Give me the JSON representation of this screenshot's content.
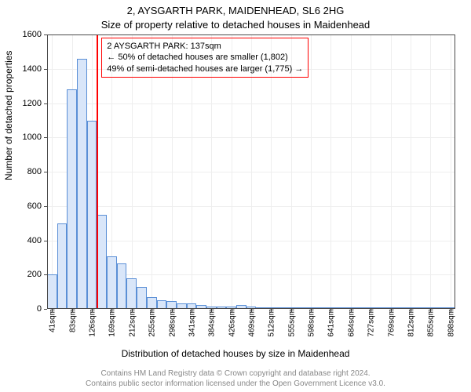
{
  "title_main": "2, AYSGARTH PARK, MAIDENHEAD, SL6 2HG",
  "title_sub": "Size of property relative to detached houses in Maidenhead",
  "ylabel": "Number of detached properties",
  "xlabel": "Distribution of detached houses by size in Maidenhead",
  "attribution_line1": "Contains HM Land Registry data © Crown copyright and database right 2024.",
  "attribution_line2": "Contains public sector information licensed under the Open Government Licence v3.0.",
  "chart": {
    "type": "histogram",
    "ylim": [
      0,
      1600
    ],
    "ytick_step": 200,
    "ylabel_fontsize": 12,
    "xlabel_fontsize": 12,
    "title_fontsize": 13,
    "tick_fontsize": 11,
    "background_color": "#ffffff",
    "grid_color": "#eeeeee",
    "border_color": "#4a4a4a",
    "bar_fill": "#d9e6f9",
    "bar_border": "#5a8fd6",
    "bar_border_width": 1,
    "marker_color": "#ff0000",
    "marker_value_sqm": 137,
    "annotation_border": "#ff0000",
    "annotation_text_color": "#000000",
    "annotation_lines": [
      "2 AYSGARTH PARK: 137sqm",
      "← 50% of detached houses are smaller (1,802)",
      "49% of semi-detached houses are larger (1,775) →"
    ],
    "x_start_sqm": 30,
    "x_bin_width_sqm": 21.45,
    "x_tick_labels": [
      "41sqm",
      "83sqm",
      "126sqm",
      "169sqm",
      "212sqm",
      "255sqm",
      "298sqm",
      "341sqm",
      "384sqm",
      "426sqm",
      "469sqm",
      "512sqm",
      "555sqm",
      "598sqm",
      "641sqm",
      "684sqm",
      "727sqm",
      "769sqm",
      "812sqm",
      "855sqm",
      "898sqm"
    ],
    "bars": [
      200,
      500,
      1280,
      1460,
      1095,
      550,
      305,
      265,
      180,
      130,
      70,
      50,
      45,
      30,
      30,
      25,
      15,
      15,
      12,
      25,
      12,
      5,
      5,
      10,
      5,
      3,
      8,
      3,
      3,
      3,
      3,
      3,
      3,
      3,
      3,
      3,
      3,
      3,
      3,
      3,
      3
    ]
  }
}
